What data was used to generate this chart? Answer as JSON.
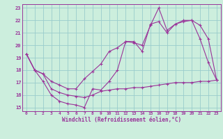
{
  "xlabel": "Windchill (Refroidissement éolien,°C)",
  "bg_color": "#cceedd",
  "line_color": "#993399",
  "grid_color": "#99cccc",
  "xlim": [
    -0.5,
    23.5
  ],
  "ylim": [
    14.7,
    23.3
  ],
  "xticks": [
    0,
    1,
    2,
    3,
    4,
    5,
    6,
    7,
    8,
    9,
    10,
    11,
    12,
    13,
    14,
    15,
    16,
    17,
    18,
    19,
    20,
    21,
    22,
    23
  ],
  "yticks": [
    15,
    16,
    17,
    18,
    19,
    20,
    21,
    22,
    23
  ],
  "line1_x": [
    0,
    1,
    2,
    3,
    4,
    5,
    6,
    7,
    8,
    9,
    10,
    11,
    12,
    13,
    14,
    15,
    16,
    17,
    18,
    19,
    20,
    21,
    22,
    23
  ],
  "line1_y": [
    19.3,
    18.0,
    17.1,
    16.0,
    15.5,
    15.3,
    15.2,
    15.0,
    16.5,
    16.4,
    17.1,
    18.0,
    20.3,
    20.2,
    20.0,
    21.6,
    23.0,
    21.2,
    21.7,
    22.0,
    22.0,
    20.5,
    18.6,
    17.2
  ],
  "line2_x": [
    0,
    1,
    2,
    3,
    4,
    5,
    6,
    7,
    8,
    9,
    10,
    11,
    12,
    13,
    14,
    15,
    16,
    17,
    18,
    19,
    20,
    21,
    22,
    23
  ],
  "line2_y": [
    19.3,
    18.0,
    17.7,
    17.1,
    16.8,
    16.5,
    16.5,
    17.3,
    17.9,
    18.5,
    19.5,
    19.8,
    20.3,
    20.3,
    19.5,
    21.7,
    21.9,
    21.0,
    21.7,
    21.9,
    22.0,
    21.6,
    20.5,
    17.2
  ],
  "line3_x": [
    0,
    1,
    2,
    3,
    4,
    5,
    6,
    7,
    8,
    9,
    10,
    11,
    12,
    13,
    14,
    15,
    16,
    17,
    18,
    19,
    20,
    21,
    22,
    23
  ],
  "line3_y": [
    19.3,
    18.0,
    17.7,
    16.5,
    16.2,
    16.0,
    15.9,
    15.8,
    16.0,
    16.3,
    16.4,
    16.5,
    16.5,
    16.6,
    16.6,
    16.7,
    16.8,
    16.9,
    17.0,
    17.0,
    17.0,
    17.1,
    17.1,
    17.2
  ]
}
